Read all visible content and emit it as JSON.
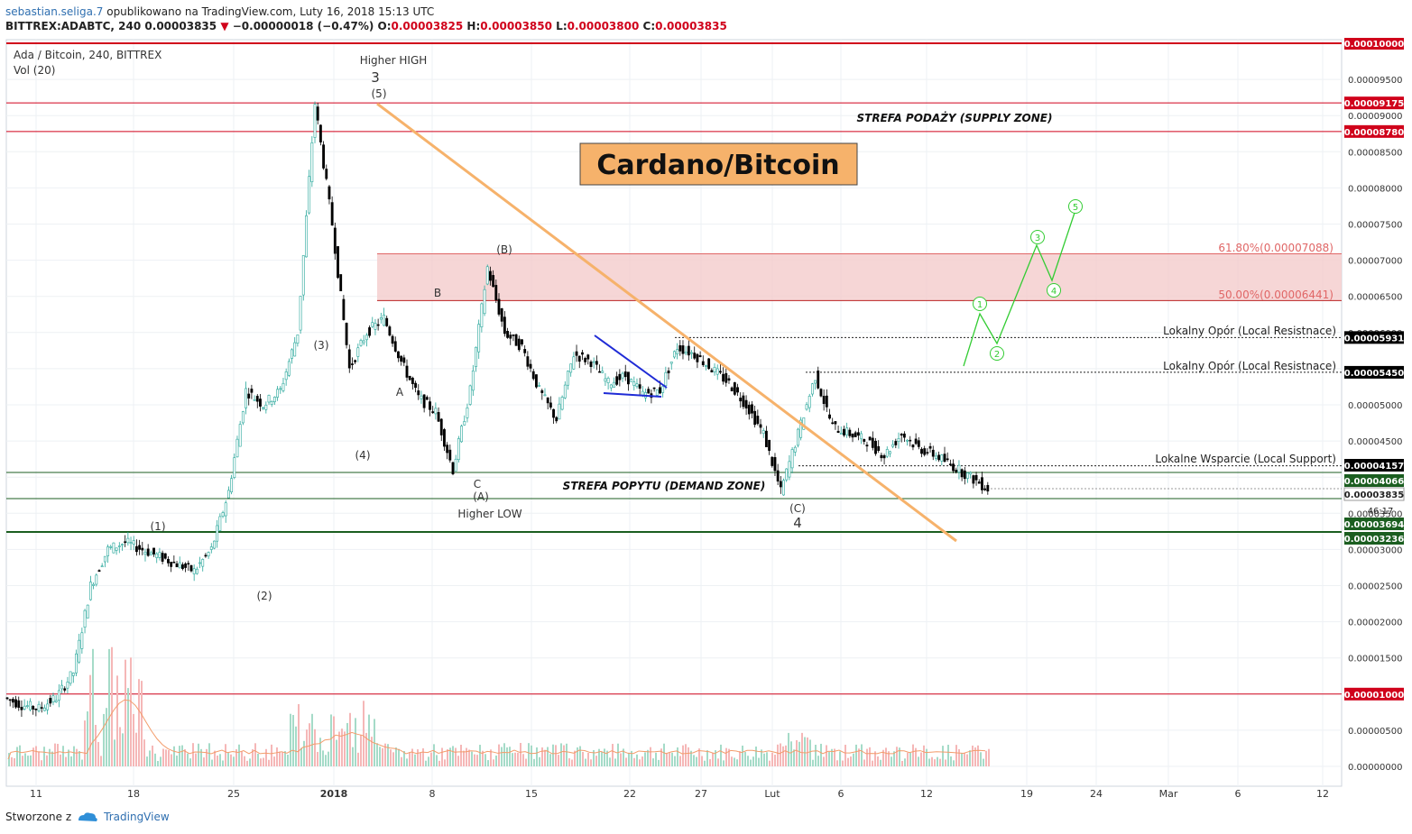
{
  "header": {
    "user": "sebastian.seliga.7",
    "published": " opublikowano na TradingView.com, Luty 16, 2018 15:13 UTC",
    "symbol": "BITTREX:ADABTC, 240",
    "last": "0.00003835",
    "change": "−0.00000018 (−0.47%)",
    "o_label": "O:",
    "o": "0.00003825",
    "h_label": "H:",
    "h": "0.00003850",
    "l_label": "L:",
    "l": "0.00003800",
    "c_label": "C:",
    "c": "0.00003835"
  },
  "legend": {
    "title": "Ada / Bitcoin, 240, BITTREX",
    "vol": "Vol (20)"
  },
  "footer": {
    "made_with": "Stworzone z",
    "brand": "TradingView"
  },
  "chart_data": {
    "type": "line",
    "title": "Cardano/Bitcoin",
    "y_range": [
      0.0,
      0.0001
    ],
    "x_ticks": [
      "11",
      "18",
      "25",
      "2018",
      "8",
      "15",
      "22",
      "27",
      "Lut",
      "6",
      "12",
      "19",
      "24",
      "Mar",
      "6",
      "12"
    ],
    "y_ticks": [
      "0.00009500",
      "0.00009000",
      "0.00008500",
      "0.00008000",
      "0.00007500",
      "0.00007000",
      "0.00006500",
      "0.00006000",
      "0.00005500",
      "0.00005000",
      "0.00004500",
      "0.00004000",
      "0.00003500",
      "0.00003000",
      "0.00002500",
      "0.00002000",
      "0.00001500",
      "0.00001000",
      "0.00000500",
      "0.00000000"
    ],
    "series": [
      {
        "values": [
          9.5e-06,
          8.5e-06,
          8e-06,
          9.5e-06,
          1.3e-05,
          2.5e-05,
          3e-05,
          3.1e-05,
          3e-05,
          2.9e-05,
          2.8e-05,
          2.7e-05,
          3e-05,
          3.8e-05,
          5.2e-05,
          5e-05,
          5.2e-05,
          6e-05,
          9.17e-05,
          7.5e-05,
          5.5e-05,
          6e-05,
          6.2e-05,
          5.6e-05,
          5.1e-05,
          4.9e-05,
          4.1e-05,
          5.2e-05,
          6.9e-05,
          6e-05,
          5.8e-05,
          5.2e-05,
          4.8e-05,
          5.7e-05,
          5.6e-05,
          5.3e-05,
          5.4e-05,
          5.15e-05,
          5.2e-05,
          5.8e-05,
          5.7e-05,
          5.5e-05,
          5.3e-05,
          5e-05,
          4.6e-05,
          3.8e-05,
          4.6e-05,
          5.4e-05,
          4.7e-05,
          4.6e-05,
          4.5e-05,
          4.3e-05,
          4.6e-05,
          4.4e-05,
          4.3e-05,
          4.15e-05,
          4e-05,
          3.84e-05
        ]
      }
    ],
    "price_lines": [
      {
        "value": "0.00010000",
        "color": "#d0021b"
      },
      {
        "value": "0.00009175",
        "color": "#d0021b"
      },
      {
        "value": "0.00008780",
        "color": "#d0021b"
      },
      {
        "value": "0.00005931",
        "color": "#000000"
      },
      {
        "value": "0.00005450",
        "color": "#000000"
      },
      {
        "value": "0.00004157",
        "color": "#000000"
      },
      {
        "value": "0.00004066",
        "color": "#1b5e20"
      },
      {
        "value": "0.00003835",
        "color": "#ffffff"
      },
      {
        "value": "0.00003694",
        "color": "#1b5e20"
      },
      {
        "value": "0.00003236",
        "color": "#1b5e20"
      },
      {
        "value": "0.00001000",
        "color": "#d0021b"
      }
    ],
    "countdown": "46:17",
    "fib": [
      {
        "label": "61.80%(0.00007088)",
        "value": 7.088e-05
      },
      {
        "label": "50.00%(0.00006441)",
        "value": 6.441e-05
      }
    ],
    "zones": {
      "supply": "STREFA PODAŻY (SUPPLY ZONE)",
      "demand": "STREFA POPYTU (DEMAND ZONE)"
    },
    "resistance_label": "Lokalny Opór (Local Resistnace)",
    "support_label": "Lokalne Wsparcie (Local Support)",
    "annotations": {
      "higher_high": "Higher HIGH",
      "higher_low": "Higher LOW",
      "wave3": "3",
      "wave4": "4",
      "w5": "(5)",
      "w1": "(1)",
      "w2": "(2)",
      "w3": "(3)",
      "w4": "(4)",
      "wA": "A",
      "wB": "B",
      "wC": "C",
      "wAp": "(A)",
      "wBp": "(B)",
      "wCp": "(C)"
    },
    "forecast_labels": [
      "1",
      "2",
      "3",
      "4",
      "5"
    ],
    "colors": {
      "up": "#26a69a",
      "down": "#000000",
      "trendline": "#f6b26b",
      "fib_zone": "#f4cccc",
      "forecast": "#33cc33",
      "wedge": "#1f2bd6",
      "vol_ma": "#f39c6b"
    }
  }
}
